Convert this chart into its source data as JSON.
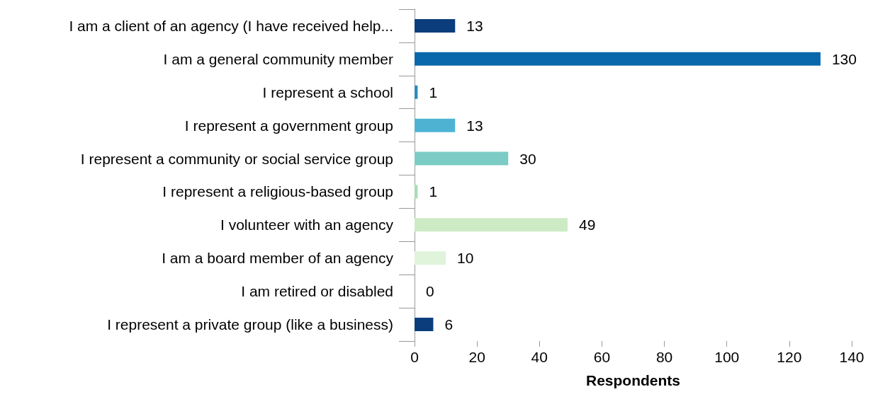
{
  "chart_data": {
    "type": "bar",
    "orientation": "horizontal",
    "xlabel": "Respondents",
    "categories": [
      "I am a client of an agency (I have received help...",
      "I am a general community member",
      "I represent a school",
      "I represent a government group",
      "I represent a community or social service group",
      "I represent a religious-based group",
      "I volunteer with an agency",
      "I am a board member of an agency",
      "I am retired or disabled",
      "I represent a private group (like a business)"
    ],
    "values": [
      13,
      130,
      1,
      13,
      30,
      1,
      49,
      10,
      0,
      6
    ],
    "colors": [
      "#0b3d7d",
      "#0868ab",
      "#2b8cbe",
      "#4eb3d3",
      "#7bccc4",
      "#a8ddb5",
      "#ccebc5",
      "#e0f3db",
      "#f7fcf0",
      "#0b3d7d"
    ],
    "xlim": [
      0,
      140
    ],
    "xticks": [
      0,
      20,
      40,
      60,
      80,
      100,
      120,
      140
    ],
    "data_labels": true,
    "grid": false
  }
}
